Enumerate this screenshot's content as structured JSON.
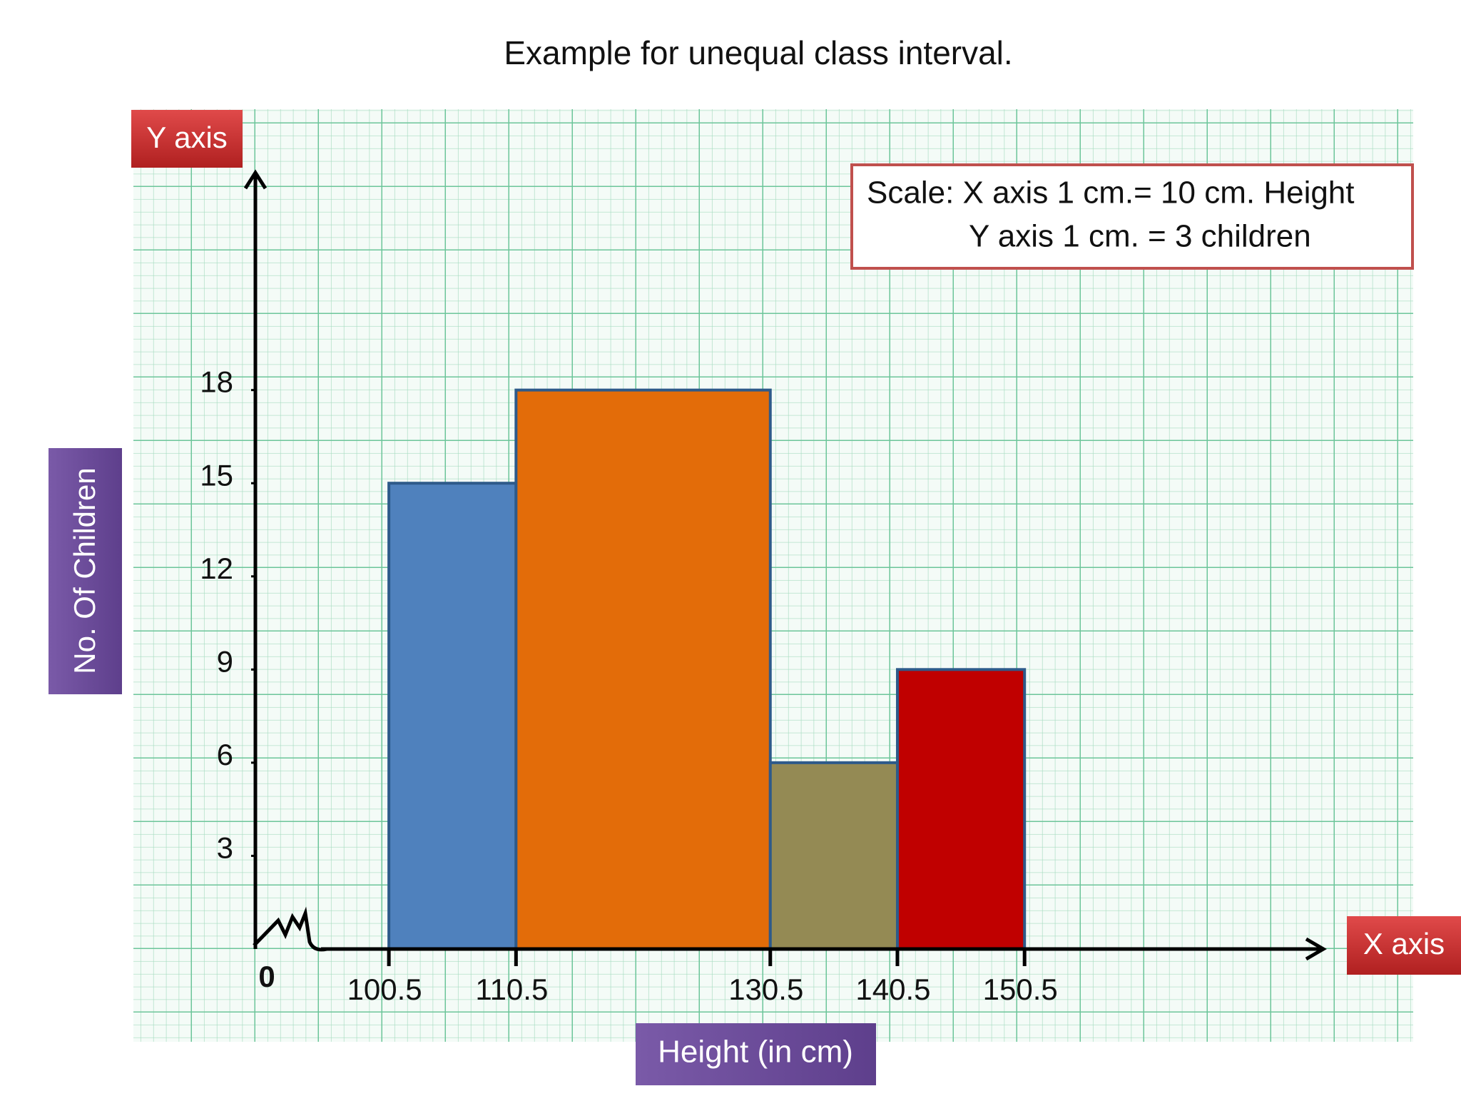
{
  "chart_data": {
    "type": "histogram",
    "title": "Example for unequal class interval.",
    "bins": [
      100.5,
      110.5,
      130.5,
      140.5,
      150.5
    ],
    "values": [
      15,
      18,
      6,
      9
    ],
    "colors": [
      "#4f81bd",
      "#e36c09",
      "#948a54",
      "#c00000"
    ],
    "xlim": [
      90,
      174
    ],
    "ylim": [
      0,
      25
    ],
    "yticks": [
      0,
      3,
      6,
      9,
      12,
      15,
      18
    ],
    "y_axis_tag": "Y axis",
    "x_axis_tag": "X axis",
    "ylabel": "No. Of Children",
    "xlabel": "Height (in cm)",
    "scale_note": [
      "Scale: X axis 1 cm.= 10 cm. Height",
      "Y axis 1 cm. = 3 children"
    ]
  }
}
